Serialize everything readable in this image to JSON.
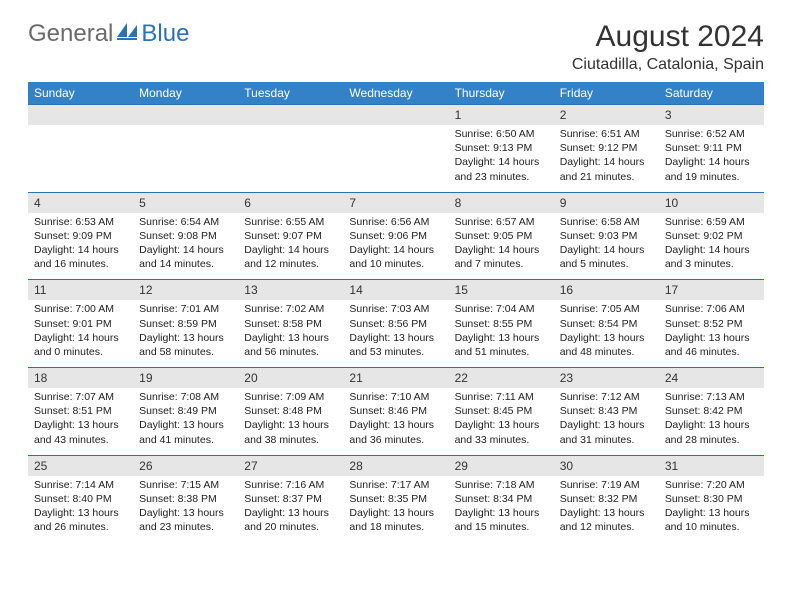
{
  "logo": {
    "part1": "General",
    "part2": "Blue"
  },
  "title": "August 2024",
  "location": "Ciutadilla, Catalonia, Spain",
  "colors": {
    "header_bg": "#3381c6",
    "header_text": "#ffffff",
    "daynum_bg": "#e6e6e6",
    "border": "#2a71b8",
    "logo_gray": "#6b6b6b",
    "logo_blue": "#2a71b8"
  },
  "dow": [
    "Sunday",
    "Monday",
    "Tuesday",
    "Wednesday",
    "Thursday",
    "Friday",
    "Saturday"
  ],
  "weeks": [
    {
      "nums": [
        "",
        "",
        "",
        "",
        "1",
        "2",
        "3"
      ],
      "cells": [
        {
          "sunrise": "",
          "sunset": "",
          "daylight": ""
        },
        {
          "sunrise": "",
          "sunset": "",
          "daylight": ""
        },
        {
          "sunrise": "",
          "sunset": "",
          "daylight": ""
        },
        {
          "sunrise": "",
          "sunset": "",
          "daylight": ""
        },
        {
          "sunrise": "Sunrise: 6:50 AM",
          "sunset": "Sunset: 9:13 PM",
          "daylight": "Daylight: 14 hours and 23 minutes."
        },
        {
          "sunrise": "Sunrise: 6:51 AM",
          "sunset": "Sunset: 9:12 PM",
          "daylight": "Daylight: 14 hours and 21 minutes."
        },
        {
          "sunrise": "Sunrise: 6:52 AM",
          "sunset": "Sunset: 9:11 PM",
          "daylight": "Daylight: 14 hours and 19 minutes."
        }
      ]
    },
    {
      "nums": [
        "4",
        "5",
        "6",
        "7",
        "8",
        "9",
        "10"
      ],
      "cells": [
        {
          "sunrise": "Sunrise: 6:53 AM",
          "sunset": "Sunset: 9:09 PM",
          "daylight": "Daylight: 14 hours and 16 minutes."
        },
        {
          "sunrise": "Sunrise: 6:54 AM",
          "sunset": "Sunset: 9:08 PM",
          "daylight": "Daylight: 14 hours and 14 minutes."
        },
        {
          "sunrise": "Sunrise: 6:55 AM",
          "sunset": "Sunset: 9:07 PM",
          "daylight": "Daylight: 14 hours and 12 minutes."
        },
        {
          "sunrise": "Sunrise: 6:56 AM",
          "sunset": "Sunset: 9:06 PM",
          "daylight": "Daylight: 14 hours and 10 minutes."
        },
        {
          "sunrise": "Sunrise: 6:57 AM",
          "sunset": "Sunset: 9:05 PM",
          "daylight": "Daylight: 14 hours and 7 minutes."
        },
        {
          "sunrise": "Sunrise: 6:58 AM",
          "sunset": "Sunset: 9:03 PM",
          "daylight": "Daylight: 14 hours and 5 minutes."
        },
        {
          "sunrise": "Sunrise: 6:59 AM",
          "sunset": "Sunset: 9:02 PM",
          "daylight": "Daylight: 14 hours and 3 minutes."
        }
      ]
    },
    {
      "nums": [
        "11",
        "12",
        "13",
        "14",
        "15",
        "16",
        "17"
      ],
      "cells": [
        {
          "sunrise": "Sunrise: 7:00 AM",
          "sunset": "Sunset: 9:01 PM",
          "daylight": "Daylight: 14 hours and 0 minutes."
        },
        {
          "sunrise": "Sunrise: 7:01 AM",
          "sunset": "Sunset: 8:59 PM",
          "daylight": "Daylight: 13 hours and 58 minutes."
        },
        {
          "sunrise": "Sunrise: 7:02 AM",
          "sunset": "Sunset: 8:58 PM",
          "daylight": "Daylight: 13 hours and 56 minutes."
        },
        {
          "sunrise": "Sunrise: 7:03 AM",
          "sunset": "Sunset: 8:56 PM",
          "daylight": "Daylight: 13 hours and 53 minutes."
        },
        {
          "sunrise": "Sunrise: 7:04 AM",
          "sunset": "Sunset: 8:55 PM",
          "daylight": "Daylight: 13 hours and 51 minutes."
        },
        {
          "sunrise": "Sunrise: 7:05 AM",
          "sunset": "Sunset: 8:54 PM",
          "daylight": "Daylight: 13 hours and 48 minutes."
        },
        {
          "sunrise": "Sunrise: 7:06 AM",
          "sunset": "Sunset: 8:52 PM",
          "daylight": "Daylight: 13 hours and 46 minutes."
        }
      ]
    },
    {
      "nums": [
        "18",
        "19",
        "20",
        "21",
        "22",
        "23",
        "24"
      ],
      "cells": [
        {
          "sunrise": "Sunrise: 7:07 AM",
          "sunset": "Sunset: 8:51 PM",
          "daylight": "Daylight: 13 hours and 43 minutes."
        },
        {
          "sunrise": "Sunrise: 7:08 AM",
          "sunset": "Sunset: 8:49 PM",
          "daylight": "Daylight: 13 hours and 41 minutes."
        },
        {
          "sunrise": "Sunrise: 7:09 AM",
          "sunset": "Sunset: 8:48 PM",
          "daylight": "Daylight: 13 hours and 38 minutes."
        },
        {
          "sunrise": "Sunrise: 7:10 AM",
          "sunset": "Sunset: 8:46 PM",
          "daylight": "Daylight: 13 hours and 36 minutes."
        },
        {
          "sunrise": "Sunrise: 7:11 AM",
          "sunset": "Sunset: 8:45 PM",
          "daylight": "Daylight: 13 hours and 33 minutes."
        },
        {
          "sunrise": "Sunrise: 7:12 AM",
          "sunset": "Sunset: 8:43 PM",
          "daylight": "Daylight: 13 hours and 31 minutes."
        },
        {
          "sunrise": "Sunrise: 7:13 AM",
          "sunset": "Sunset: 8:42 PM",
          "daylight": "Daylight: 13 hours and 28 minutes."
        }
      ]
    },
    {
      "nums": [
        "25",
        "26",
        "27",
        "28",
        "29",
        "30",
        "31"
      ],
      "cells": [
        {
          "sunrise": "Sunrise: 7:14 AM",
          "sunset": "Sunset: 8:40 PM",
          "daylight": "Daylight: 13 hours and 26 minutes."
        },
        {
          "sunrise": "Sunrise: 7:15 AM",
          "sunset": "Sunset: 8:38 PM",
          "daylight": "Daylight: 13 hours and 23 minutes."
        },
        {
          "sunrise": "Sunrise: 7:16 AM",
          "sunset": "Sunset: 8:37 PM",
          "daylight": "Daylight: 13 hours and 20 minutes."
        },
        {
          "sunrise": "Sunrise: 7:17 AM",
          "sunset": "Sunset: 8:35 PM",
          "daylight": "Daylight: 13 hours and 18 minutes."
        },
        {
          "sunrise": "Sunrise: 7:18 AM",
          "sunset": "Sunset: 8:34 PM",
          "daylight": "Daylight: 13 hours and 15 minutes."
        },
        {
          "sunrise": "Sunrise: 7:19 AM",
          "sunset": "Sunset: 8:32 PM",
          "daylight": "Daylight: 13 hours and 12 minutes."
        },
        {
          "sunrise": "Sunrise: 7:20 AM",
          "sunset": "Sunset: 8:30 PM",
          "daylight": "Daylight: 13 hours and 10 minutes."
        }
      ]
    }
  ]
}
